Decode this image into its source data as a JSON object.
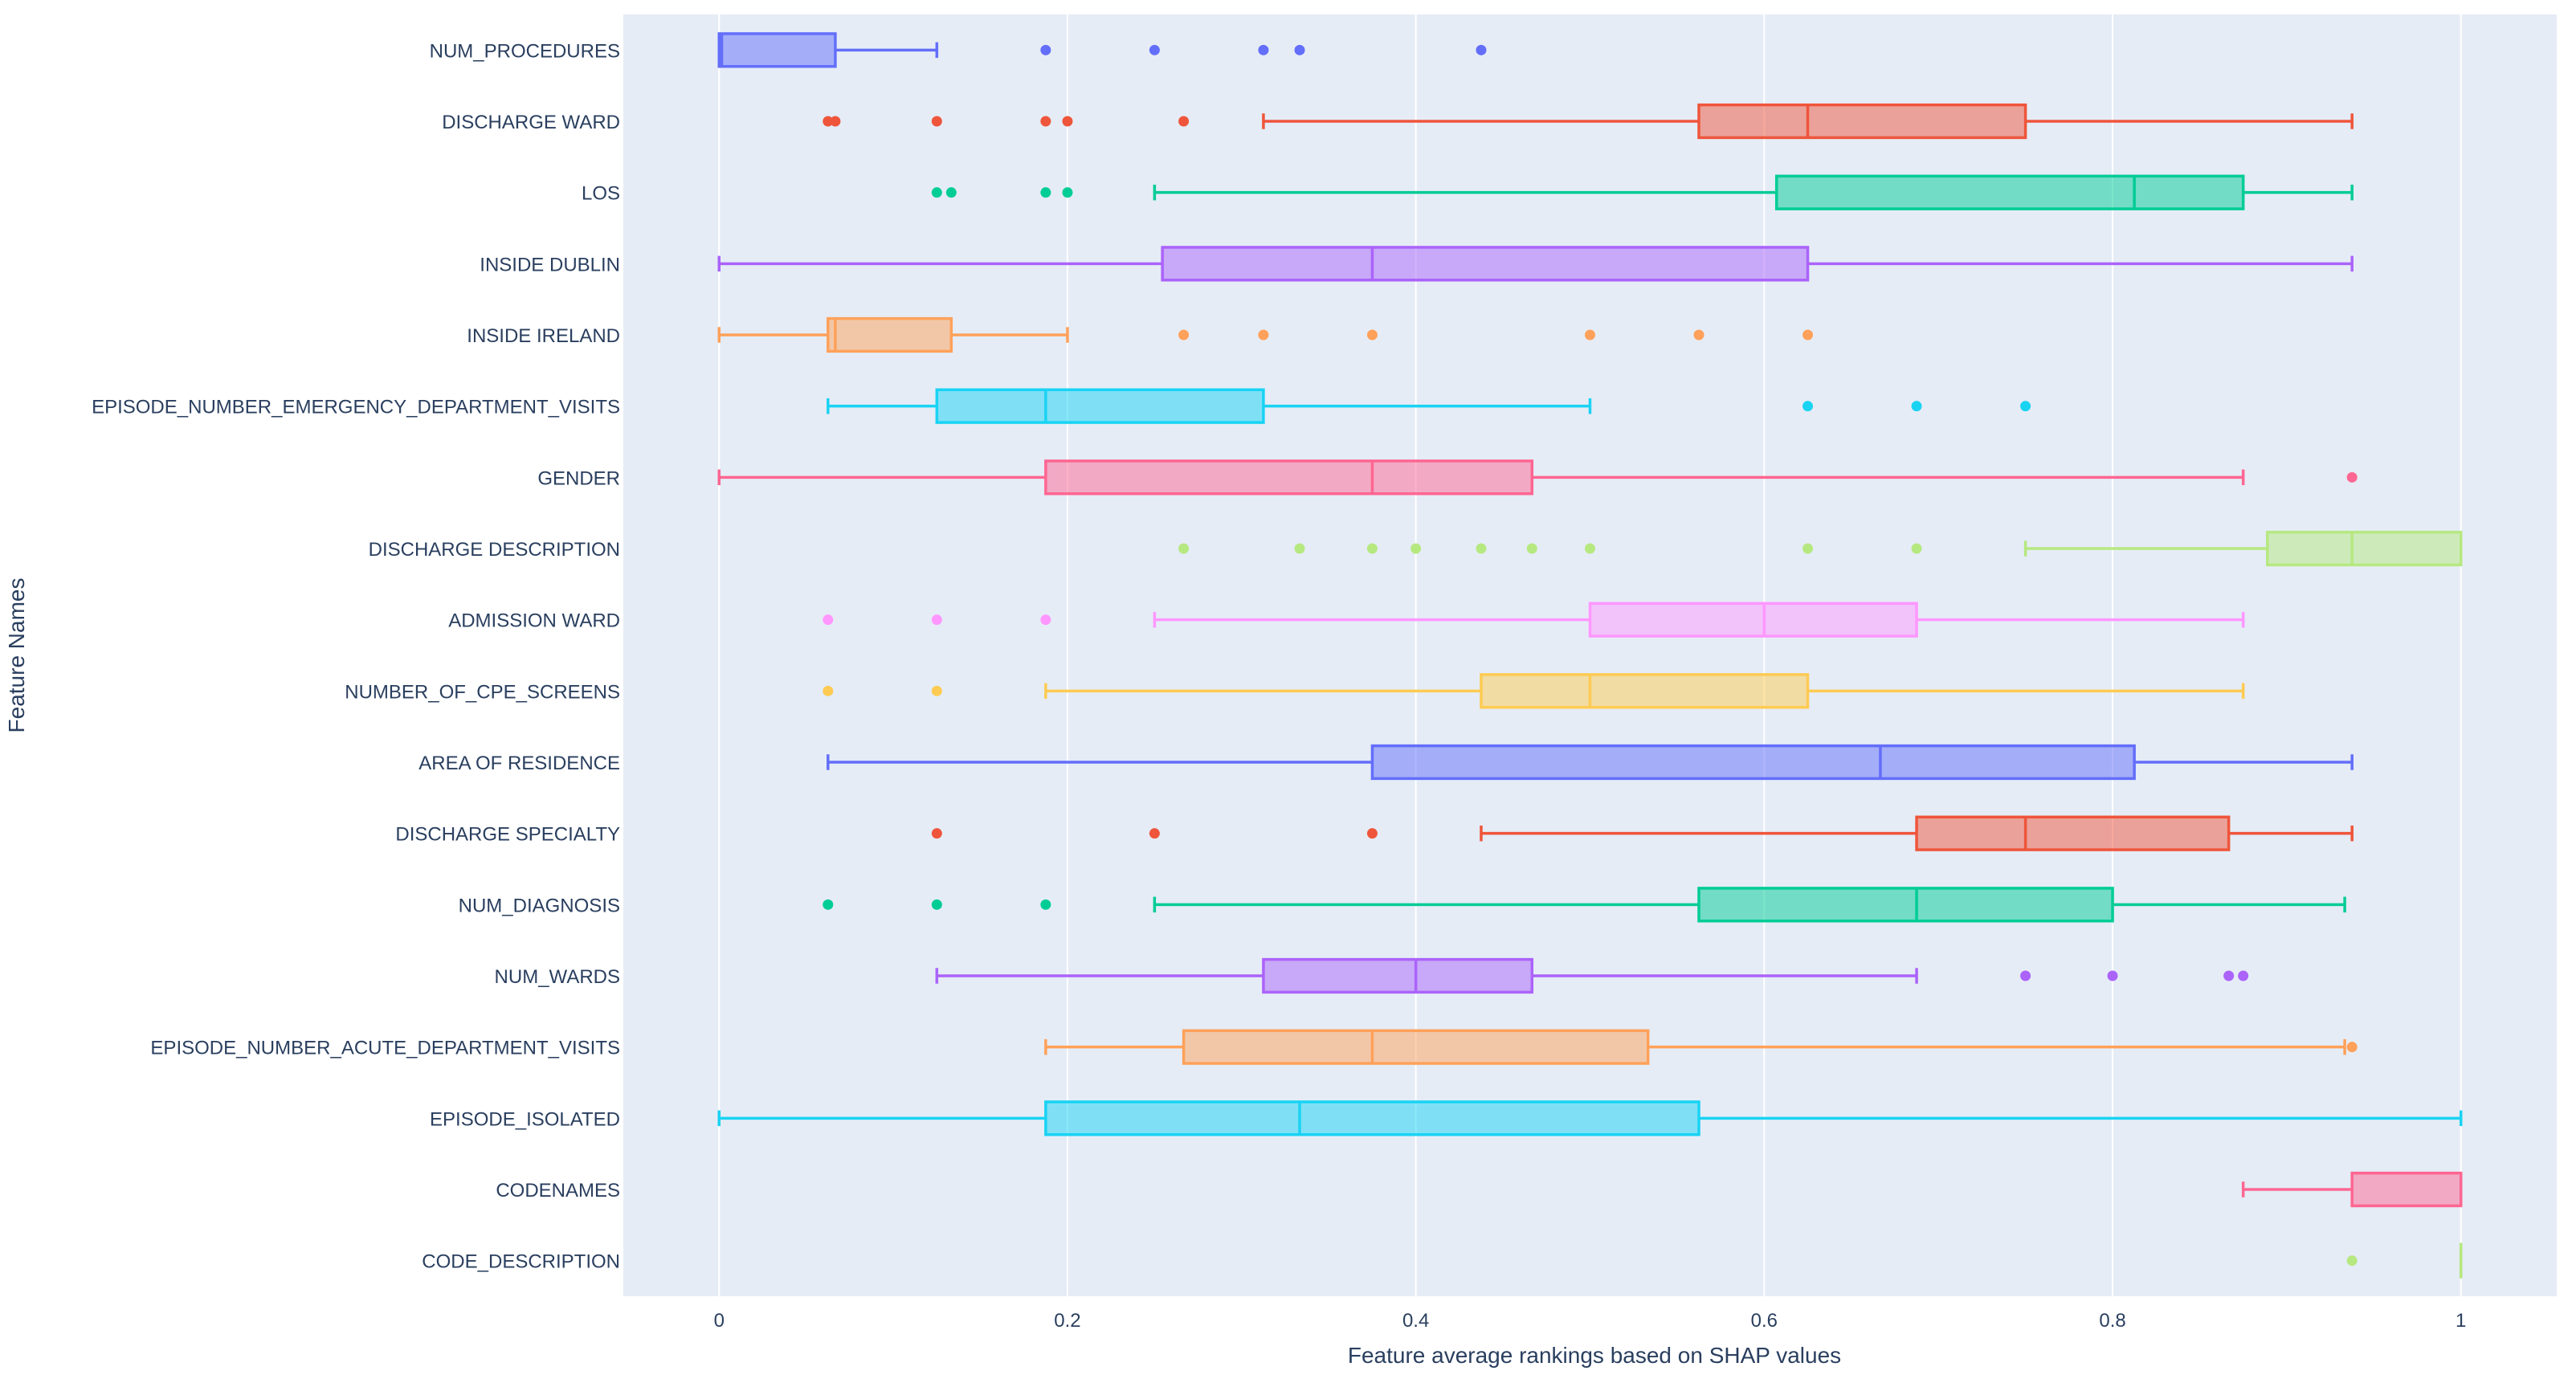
{
  "chart_data": {
    "type": "box",
    "orientation": "horizontal",
    "xlabel": "Feature average rankings based on SHAP values",
    "ylabel": "Feature Names",
    "xlim": [
      -0.055,
      1.055
    ],
    "xticks": [
      0,
      0.2,
      0.4,
      0.6,
      0.8,
      1
    ],
    "xtick_labels": [
      "0",
      "0.2",
      "0.4",
      "0.6",
      "0.8",
      "1"
    ],
    "grid": true,
    "legend": "none",
    "series": [
      {
        "name": "NUM_PROCEDURES",
        "color": "#636efa",
        "whisker_low": 0,
        "q1": 0,
        "median": 0.0015,
        "q3": 0.0667,
        "whisker_high": 0.125,
        "outliers": [
          0.1875,
          0.25,
          0.3125,
          0.3333,
          0.4375
        ]
      },
      {
        "name": "DISCHARGE WARD",
        "color": "#ef553b",
        "whisker_low": 0.3125,
        "q1": 0.5625,
        "median": 0.625,
        "q3": 0.75,
        "whisker_high": 0.9375,
        "outliers": [
          0.0625,
          0.0667,
          0.125,
          0.1875,
          0.2,
          0.2667
        ]
      },
      {
        "name": "LOS",
        "color": "#00cc96",
        "whisker_low": 0.25,
        "q1": 0.6071,
        "median": 0.8125,
        "q3": 0.875,
        "whisker_high": 0.9375,
        "outliers": [
          0.125,
          0.1333,
          0.1875,
          0.2
        ]
      },
      {
        "name": "INSIDE DUBLIN",
        "color": "#ab63fa",
        "whisker_low": 0,
        "q1": 0.2545,
        "median": 0.375,
        "q3": 0.625,
        "whisker_high": 0.9375,
        "outliers": []
      },
      {
        "name": "INSIDE IRELAND",
        "color": "#ffa15a",
        "whisker_low": 0,
        "q1": 0.0625,
        "median": 0.0667,
        "q3": 0.1333,
        "whisker_high": 0.2,
        "outliers": [
          0.2667,
          0.3125,
          0.375,
          0.5,
          0.5625,
          0.625
        ]
      },
      {
        "name": "EPISODE_NUMBER_EMERGENCY_DEPARTMENT_VISITS",
        "color": "#19d3f3",
        "whisker_low": 0.0625,
        "q1": 0.125,
        "median": 0.1875,
        "q3": 0.3125,
        "whisker_high": 0.5,
        "outliers": [
          0.625,
          0.6875,
          0.75
        ]
      },
      {
        "name": "GENDER",
        "color": "#ff6692",
        "whisker_low": 0,
        "q1": 0.1875,
        "median": 0.375,
        "q3": 0.4667,
        "whisker_high": 0.875,
        "outliers": [
          0.9375
        ]
      },
      {
        "name": "DISCHARGE DESCRIPTION",
        "color": "#b6e880",
        "whisker_low": 0.75,
        "q1": 0.8889,
        "median": 0.9375,
        "q3": 1.0,
        "whisker_high": 1.0,
        "outliers": [
          0.2667,
          0.3333,
          0.375,
          0.4,
          0.4375,
          0.4667,
          0.5,
          0.625,
          0.6875
        ]
      },
      {
        "name": "ADMISSION WARD",
        "color": "#ff97ff",
        "whisker_low": 0.25,
        "q1": 0.5,
        "median": 0.6,
        "q3": 0.6875,
        "whisker_high": 0.875,
        "outliers": [
          0.0625,
          0.125,
          0.1875
        ]
      },
      {
        "name": "NUMBER_OF_CPE_SCREENS",
        "color": "#fecb52",
        "whisker_low": 0.1875,
        "q1": 0.4375,
        "median": 0.5,
        "q3": 0.625,
        "whisker_high": 0.875,
        "outliers": [
          0.0625,
          0.125
        ]
      },
      {
        "name": "AREA OF RESIDENCE",
        "color": "#636efa",
        "whisker_low": 0.0625,
        "q1": 0.375,
        "median": 0.6667,
        "q3": 0.8125,
        "whisker_high": 0.9375,
        "outliers": []
      },
      {
        "name": "DISCHARGE SPECIALTY",
        "color": "#ef553b",
        "whisker_low": 0.4375,
        "q1": 0.6875,
        "median": 0.75,
        "q3": 0.8667,
        "whisker_high": 0.9375,
        "outliers": [
          0.125,
          0.25,
          0.375
        ]
      },
      {
        "name": "NUM_DIAGNOSIS",
        "color": "#00cc96",
        "whisker_low": 0.25,
        "q1": 0.5625,
        "median": 0.6875,
        "q3": 0.8,
        "whisker_high": 0.9333,
        "outliers": [
          0.0625,
          0.125,
          0.1875
        ]
      },
      {
        "name": "NUM_WARDS",
        "color": "#ab63fa",
        "whisker_low": 0.125,
        "q1": 0.3125,
        "median": 0.4,
        "q3": 0.4667,
        "whisker_high": 0.6875,
        "outliers": [
          0.75,
          0.8,
          0.8667,
          0.875
        ]
      },
      {
        "name": "EPISODE_NUMBER_ACUTE_DEPARTMENT_VISITS",
        "color": "#ffa15a",
        "whisker_low": 0.1875,
        "q1": 0.2667,
        "median": 0.375,
        "q3": 0.5333,
        "whisker_high": 0.9333,
        "outliers": [
          0.9375
        ]
      },
      {
        "name": "EPISODE_ISOLATED",
        "color": "#19d3f3",
        "whisker_low": 0,
        "q1": 0.1875,
        "median": 0.3333,
        "q3": 0.5625,
        "whisker_high": 1.0,
        "outliers": []
      },
      {
        "name": "CODENAMES",
        "color": "#ff6692",
        "whisker_low": 0.875,
        "q1": 0.9375,
        "median": 1.0,
        "q3": 1.0,
        "whisker_high": 1.0,
        "outliers": []
      },
      {
        "name": "CODE_DESCRIPTION",
        "color": "#b6e880",
        "whisker_low": 1.0,
        "q1": 1.0,
        "median": 1.0,
        "q3": 1.0,
        "whisker_high": 1.0,
        "outliers": [
          0.9375
        ]
      }
    ]
  }
}
